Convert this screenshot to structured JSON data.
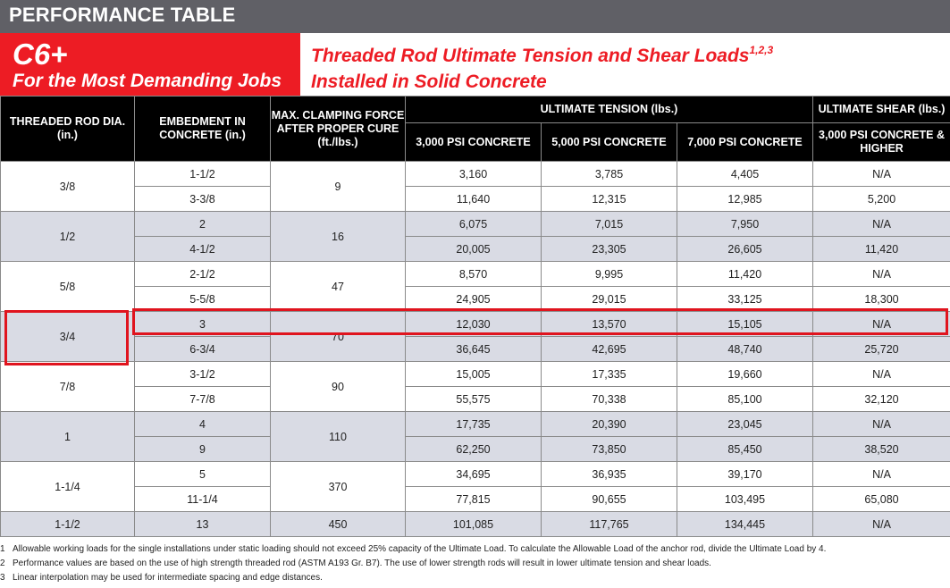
{
  "header": {
    "banner": "PERFORMANCE TABLE",
    "product": "C6+",
    "tagline": "For the Most Demanding Jobs",
    "title_line1": "Threaded Rod Ultimate Tension and Shear Loads",
    "title_sup": "1,2,3",
    "title_line2": "Installed in Solid Concrete"
  },
  "columns": {
    "dia": "THREADED ROD DIA. (in.)",
    "embed": "EMBEDMENT IN CONCRETE (in.)",
    "clamp": "MAX. CLAMPING FORCE AFTER PROPER CURE (ft./lbs.)",
    "tension_group": "ULTIMATE TENSION (lbs.)",
    "shear_group": "ULTIMATE SHEAR (lbs.)",
    "t3000": "3,000 PSI CONCRETE",
    "t5000": "5,000 PSI CONCRETE",
    "t7000": "7,000 PSI CONCRETE",
    "shear": "3,000 PSI CONCRETE & HIGHER"
  },
  "groups": [
    {
      "dia": "3/8",
      "clamp": "9",
      "rows": [
        {
          "embed": "1-1/2",
          "t3000": "3,160",
          "t5000": "3,785",
          "t7000": "4,405",
          "shear": "N/A"
        },
        {
          "embed": "3-3/8",
          "t3000": "11,640",
          "t5000": "12,315",
          "t7000": "12,985",
          "shear": "5,200"
        }
      ]
    },
    {
      "dia": "1/2",
      "clamp": "16",
      "rows": [
        {
          "embed": "2",
          "t3000": "6,075",
          "t5000": "7,015",
          "t7000": "7,950",
          "shear": "N/A"
        },
        {
          "embed": "4-1/2",
          "t3000": "20,005",
          "t5000": "23,305",
          "t7000": "26,605",
          "shear": "11,420"
        }
      ]
    },
    {
      "dia": "5/8",
      "clamp": "47",
      "rows": [
        {
          "embed": "2-1/2",
          "t3000": "8,570",
          "t5000": "9,995",
          "t7000": "11,420",
          "shear": "N/A"
        },
        {
          "embed": "5-5/8",
          "t3000": "24,905",
          "t5000": "29,015",
          "t7000": "33,125",
          "shear": "18,300"
        }
      ]
    },
    {
      "dia": "3/4",
      "clamp": "70",
      "rows": [
        {
          "embed": "3",
          "t3000": "12,030",
          "t5000": "13,570",
          "t7000": "15,105",
          "shear": "N/A"
        },
        {
          "embed": "6-3/4",
          "t3000": "36,645",
          "t5000": "42,695",
          "t7000": "48,740",
          "shear": "25,720"
        }
      ]
    },
    {
      "dia": "7/8",
      "clamp": "90",
      "rows": [
        {
          "embed": "3-1/2",
          "t3000": "15,005",
          "t5000": "17,335",
          "t7000": "19,660",
          "shear": "N/A"
        },
        {
          "embed": "7-7/8",
          "t3000": "55,575",
          "t5000": "70,338",
          "t7000": "85,100",
          "shear": "32,120"
        }
      ]
    },
    {
      "dia": "1",
      "clamp": "110",
      "rows": [
        {
          "embed": "4",
          "t3000": "17,735",
          "t5000": "20,390",
          "t7000": "23,045",
          "shear": "N/A"
        },
        {
          "embed": "9",
          "t3000": "62,250",
          "t5000": "73,850",
          "t7000": "85,450",
          "shear": "38,520"
        }
      ]
    },
    {
      "dia": "1-1/4",
      "clamp": "370",
      "rows": [
        {
          "embed": "5",
          "t3000": "34,695",
          "t5000": "36,935",
          "t7000": "39,170",
          "shear": "N/A"
        },
        {
          "embed": "11-1/4",
          "t3000": "77,815",
          "t5000": "90,655",
          "t7000": "103,495",
          "shear": "65,080"
        }
      ]
    },
    {
      "dia": "1-1/2",
      "clamp": "450",
      "rows": [
        {
          "embed": "13",
          "t3000": "101,085",
          "t5000": "117,765",
          "t7000": "134,445",
          "shear": "N/A"
        }
      ]
    }
  ],
  "footnotes": [
    {
      "num": "1",
      "text": "Allowable working loads for the single installations under static loading should not exceed 25% capacity of the Ultimate Load. To calculate the Allowable Load of the anchor rod, divide the Ultimate Load by 4."
    },
    {
      "num": "2",
      "text": "Performance values are based on the use of high strength threaded rod (ASTM A193 Gr. B7). The use of lower strength rods will result in lower ultimate tension and shear loads."
    },
    {
      "num": "3",
      "text": "Linear interpolation may be used for intermediate spacing and edge distances."
    }
  ],
  "colors": {
    "accent": "#ed1c24",
    "banner": "#606066",
    "header_bg": "#000000",
    "row_shade": "#d9dbe4",
    "highlight": "#e0141e"
  }
}
